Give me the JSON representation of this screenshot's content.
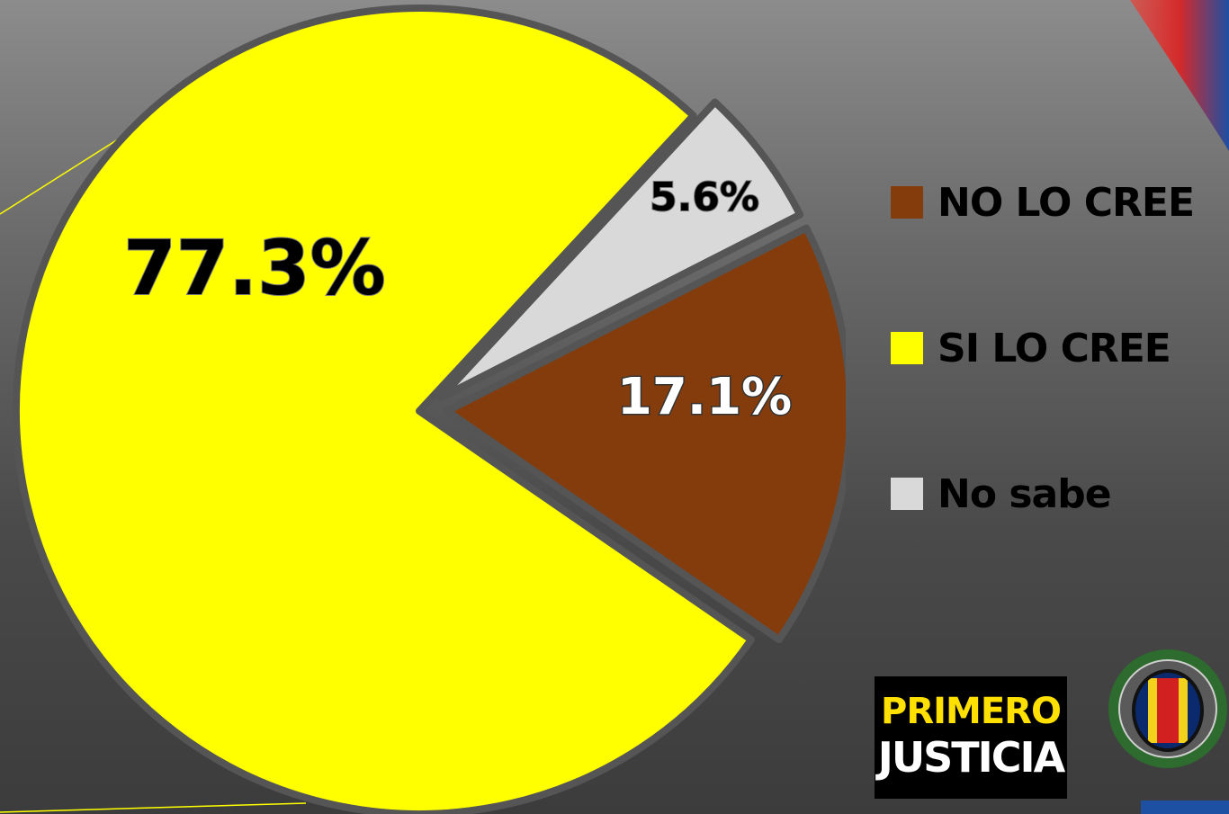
{
  "chart_data": {
    "type": "pie",
    "categories": [
      "NO LO CREE",
      "SI LO CREE",
      "No sabe"
    ],
    "values": [
      17.1,
      77.3,
      5.6
    ],
    "labels": [
      "17.1%",
      "77.3%",
      "5.6%"
    ],
    "colors": [
      "#843C0C",
      "#FFFF00",
      "#D9D9D9"
    ],
    "legend_position": "right",
    "exploded": true
  },
  "legend": [
    {
      "label": "NO LO CREE",
      "color": "#843C0C"
    },
    {
      "label": "SI LO CREE",
      "color": "#FFFF00"
    },
    {
      "label": "No sabe",
      "color": "#D9D9D9"
    }
  ],
  "logos": {
    "primero_justicia": {
      "line1": "PRIMERO",
      "line2": "JUSTICIA"
    },
    "seal": {
      "icon": "mud-seal-icon"
    }
  },
  "decor": {
    "corner_flag": "flag-corner-icon"
  }
}
